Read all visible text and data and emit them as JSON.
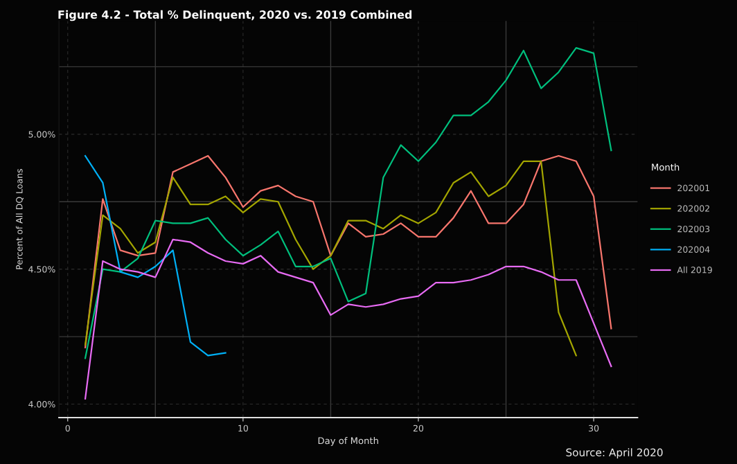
{
  "chart_data": {
    "type": "line",
    "title": "Figure 4.2 - Total % Delinquent, 2020 vs. 2019 Combined",
    "xlabel": "Day of Month",
    "ylabel": "Percent of All DQ Loans",
    "legend_title": "Month",
    "annotations": [
      "Source: April 2020"
    ],
    "x": [
      1,
      2,
      3,
      4,
      5,
      6,
      7,
      8,
      9,
      10,
      11,
      12,
      13,
      14,
      15,
      16,
      17,
      18,
      19,
      20,
      21,
      22,
      23,
      24,
      25,
      26,
      27,
      28,
      29,
      30,
      31
    ],
    "series": [
      {
        "name": "202001",
        "color": "#f8766d",
        "values": [
          4.21,
          4.76,
          4.57,
          4.55,
          4.56,
          4.86,
          4.89,
          4.92,
          4.84,
          4.73,
          4.79,
          4.81,
          4.77,
          4.75,
          4.55,
          4.67,
          4.62,
          4.63,
          4.67,
          4.62,
          4.62,
          4.69,
          4.79,
          4.67,
          4.67,
          4.74,
          4.9,
          4.92,
          4.9,
          4.77,
          4.28
        ]
      },
      {
        "name": "202002",
        "color": "#a3a500",
        "x": [
          1,
          2,
          3,
          4,
          5,
          6,
          7,
          8,
          9,
          10,
          11,
          12,
          13,
          14,
          15,
          16,
          17,
          18,
          19,
          20,
          21,
          22,
          23,
          24,
          25,
          26,
          27,
          28,
          29
        ],
        "values": [
          4.22,
          4.7,
          4.65,
          4.56,
          4.6,
          4.84,
          4.74,
          4.74,
          4.77,
          4.71,
          4.76,
          4.75,
          4.61,
          4.5,
          4.55,
          4.68,
          4.68,
          4.65,
          4.7,
          4.67,
          4.71,
          4.82,
          4.86,
          4.77,
          4.81,
          4.9,
          4.9,
          4.34,
          4.18
        ]
      },
      {
        "name": "202003",
        "color": "#00bf7d",
        "values": [
          4.17,
          4.5,
          4.49,
          4.54,
          4.68,
          4.67,
          4.67,
          4.69,
          4.61,
          4.55,
          4.59,
          4.64,
          4.51,
          4.51,
          4.54,
          4.38,
          4.41,
          4.84,
          4.96,
          4.9,
          4.97,
          5.07,
          5.07,
          5.12,
          5.2,
          5.31,
          5.17,
          5.23,
          5.32,
          5.3,
          4.94
        ]
      },
      {
        "name": "202004",
        "color": "#00b0f6",
        "x": [
          1,
          2,
          3,
          4,
          5,
          6,
          7,
          8,
          9
        ],
        "values": [
          4.92,
          4.82,
          4.49,
          4.47,
          4.51,
          4.57,
          4.23,
          4.18,
          4.19
        ]
      },
      {
        "name": "All 2019",
        "color": "#e76bf3",
        "values": [
          4.02,
          4.53,
          4.5,
          4.49,
          4.47,
          4.61,
          4.6,
          4.56,
          4.53,
          4.52,
          4.55,
          4.49,
          4.47,
          4.45,
          4.33,
          4.37,
          4.36,
          4.37,
          4.39,
          4.4,
          4.45,
          4.45,
          4.46,
          4.48,
          4.51,
          4.51,
          4.49,
          4.46,
          4.46,
          4.3,
          4.14
        ]
      }
    ],
    "xlim": [
      -0.5,
      32.5
    ],
    "xticks": [
      0,
      10,
      20,
      30
    ],
    "ylim": [
      3.95,
      5.42
    ],
    "yticks": [
      {
        "value": 4.0,
        "label": "4.00%"
      },
      {
        "value": 4.5,
        "label": "4.50%"
      },
      {
        "value": 5.0,
        "label": "5.00%"
      }
    ],
    "grid": true,
    "legend": "right",
    "marker": "none",
    "line_style": "solid"
  }
}
